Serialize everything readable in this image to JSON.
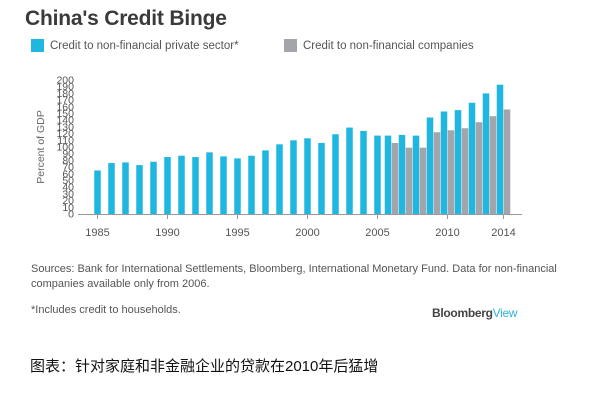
{
  "title": "China's Credit Binge",
  "legend": [
    {
      "label": "Credit to non-financial private sector*",
      "color": "#1fb6e0"
    },
    {
      "label": "Credit to non-financial companies",
      "color": "#a3a5aa"
    }
  ],
  "source": "Sources: Bank for International Settlements, Bloomberg, International Monetary Fund. Data for non-financial companies available only from 2006.",
  "footnote": "*Includes credit to households.",
  "brand": {
    "name": "Bloomberg",
    "accent": "View"
  },
  "caption": "图表：针对家庭和非金融企业的贷款在2010年后猛增",
  "chart_data": {
    "type": "bar",
    "title": "China's Credit Binge",
    "xlabel": "",
    "ylabel": "Percent of GDP",
    "ylim": [
      0,
      200
    ],
    "yticks": [
      0,
      10,
      20,
      30,
      40,
      50,
      60,
      70,
      80,
      90,
      100,
      110,
      120,
      130,
      140,
      150,
      160,
      170,
      180,
      190,
      200
    ],
    "xtick_labels": [
      "1985",
      "1990",
      "1995",
      "2000",
      "2005",
      "2010",
      "2014"
    ],
    "categories": [
      1985,
      1986,
      1987,
      1988,
      1989,
      1990,
      1991,
      1992,
      1993,
      1994,
      1995,
      1996,
      1997,
      1998,
      1999,
      2000,
      2001,
      2002,
      2003,
      2004,
      2005,
      2006,
      2007,
      2008,
      2009,
      2010,
      2011,
      2012,
      2013,
      2014
    ],
    "grid": false,
    "legend_position": "top",
    "series": [
      {
        "name": "Credit to non-financial private sector*",
        "color": "#1fb6e0",
        "values": [
          65,
          76,
          77,
          73,
          78,
          85,
          87,
          85,
          92,
          86,
          83,
          87,
          95,
          104,
          110,
          113,
          106,
          119,
          129,
          124,
          117,
          117,
          118,
          117,
          144,
          153,
          155,
          166,
          180,
          193
        ]
      },
      {
        "name": "Credit to non-financial companies",
        "color": "#a3a5aa",
        "values": [
          null,
          null,
          null,
          null,
          null,
          null,
          null,
          null,
          null,
          null,
          null,
          null,
          null,
          null,
          null,
          null,
          null,
          null,
          null,
          null,
          null,
          106,
          99,
          99,
          122,
          125,
          128,
          137,
          146,
          156
        ]
      }
    ]
  }
}
